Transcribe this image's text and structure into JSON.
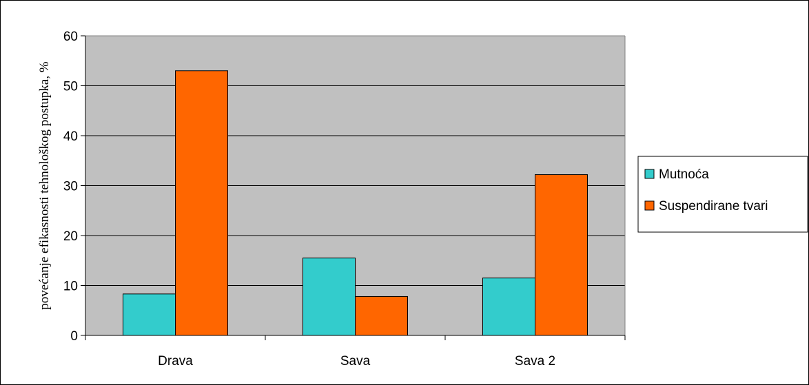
{
  "chart_data": {
    "type": "bar",
    "categories": [
      "Drava",
      "Sava",
      "Sava 2"
    ],
    "series": [
      {
        "name": "Mutnoća",
        "values": [
          8.3,
          15.5,
          11.5
        ],
        "color": "#33CCCC"
      },
      {
        "name": "Suspendirane tvari",
        "values": [
          53,
          7.8,
          32.2
        ],
        "color": "#FF6600"
      }
    ],
    "ylabel": "povećanje efikasnosti tehnološkog postupka, %",
    "xlabel": "",
    "ylim": [
      0,
      60
    ],
    "yticks": [
      0,
      10,
      20,
      30,
      40,
      50,
      60
    ],
    "grid": true,
    "legend": "right",
    "plot_background": "#C0C0C0"
  }
}
